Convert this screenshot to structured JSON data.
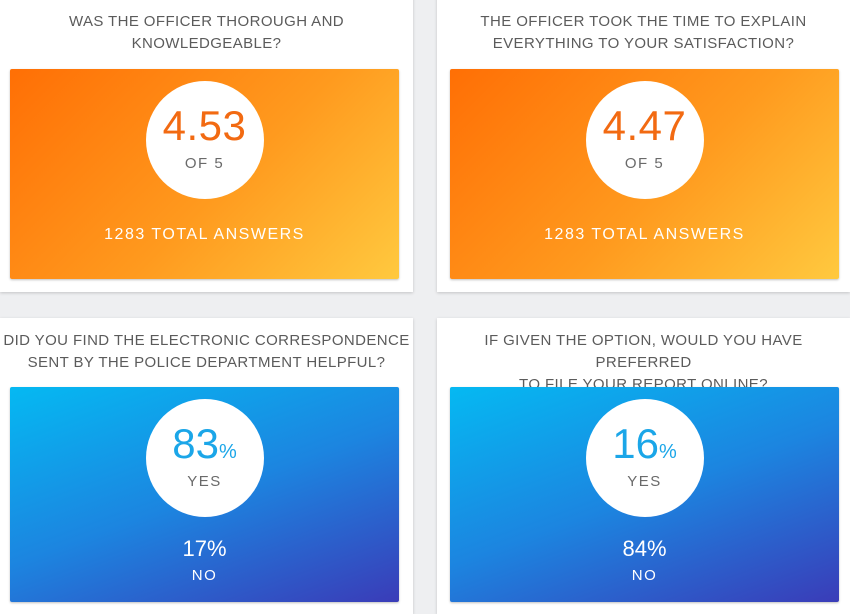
{
  "cards": [
    {
      "title_line1": "WAS THE OFFICER THOROUGH AND",
      "title_line2": "KNOWLEDGEABLE?",
      "score": "4.53",
      "score_sub": "OF 5",
      "total": "1283 TOTAL ANSWERS"
    },
    {
      "title_line1": "THE OFFICER TOOK THE TIME TO EXPLAIN",
      "title_line2": "EVERYTHING TO YOUR SATISFACTION?",
      "score": "4.47",
      "score_sub": "OF 5",
      "total": "1283 TOTAL ANSWERS"
    },
    {
      "title_line1": "DID YOU FIND THE ELECTRONIC CORRESPONDENCE",
      "title_line2": "SENT BY THE POLICE DEPARTMENT HELPFUL?",
      "pct": "83",
      "pct_unit": "%",
      "pct_sub": "YES",
      "other_pct": "17%",
      "other_label": "NO"
    },
    {
      "title_line1": "IF GIVEN THE OPTION, WOULD YOU HAVE PREFERRED",
      "title_line2": "TO FILE YOUR REPORT ONLINE?",
      "pct": "16",
      "pct_unit": "%",
      "pct_sub": "YES",
      "other_pct": "84%",
      "other_label": "NO"
    }
  ],
  "colors": {
    "orange_start": "#ff6f05",
    "orange_end": "#ffc93f",
    "blue_start": "#05b9f2",
    "blue_end": "#3a3cb8",
    "score_text": "#f26a12",
    "pct_text": "#1ba6e8"
  }
}
